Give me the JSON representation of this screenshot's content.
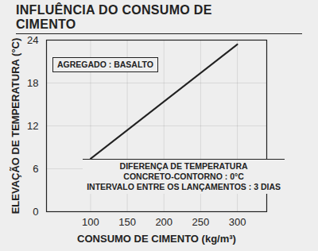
{
  "chart_data": {
    "type": "line",
    "title": "INFLUÊNCIA DO CONSUMO DE CIMENTO",
    "x_label": "CONSUMO DE CIMENTO (kg/m³)",
    "y_label": "ELEVAÇÃO DE TEMPERATURA (°C)",
    "annotations": [
      [
        "AGREGADO : BASALTO"
      ],
      [
        "DIFERENÇA DE TEMPERATURA",
        "CONCRETO-CONTORNO : 0°C",
        "INTERVALO ENTRE OS LANÇAMENTOS : 3 DIAS"
      ]
    ],
    "x": [
      100,
      300
    ],
    "values": [
      7.4,
      23.4
    ],
    "color": "#222222",
    "xlim": [
      40,
      340
    ],
    "xticks": [
      100,
      150,
      200,
      250,
      300
    ],
    "ylim": [
      0,
      24
    ],
    "yticks": [
      0,
      6,
      12,
      18,
      24
    ],
    "grid": true
  }
}
